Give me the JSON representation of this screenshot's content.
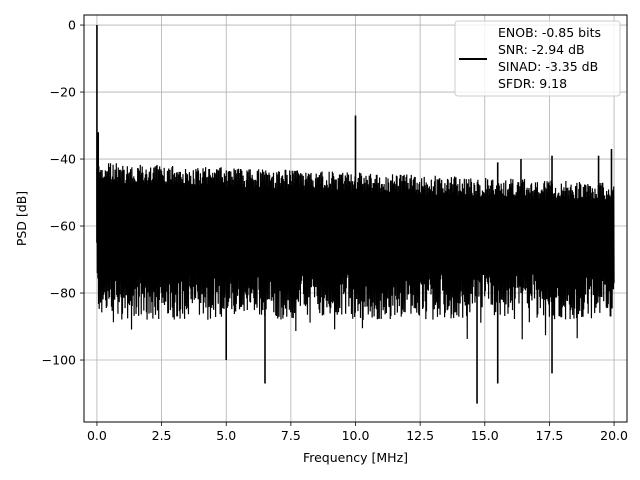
{
  "chart_data": {
    "type": "line",
    "xlabel": "Frequency [MHz]",
    "ylabel": "PSD [dB]",
    "xlim": [
      -0.5,
      20.5
    ],
    "ylim": [
      -118.5,
      3
    ],
    "grid": true,
    "xticks": [
      0.0,
      2.5,
      5.0,
      7.5,
      10.0,
      12.5,
      15.0,
      17.5,
      20.0
    ],
    "xtick_labels": [
      "0.0",
      "2.5",
      "5.0",
      "7.5",
      "10.0",
      "12.5",
      "15.0",
      "17.5",
      "20.0"
    ],
    "yticks": [
      0,
      -20,
      -40,
      -60,
      -80,
      -100
    ],
    "ytick_labels": [
      "0",
      "−20",
      "−40",
      "−60",
      "−80",
      "−100"
    ],
    "legend": {
      "placement": "top-right",
      "entries": [
        "ENOB: -0.85 bits",
        "SNR: -2.94 dB",
        "SINAD: -3.35 dB",
        "SFDR: 9.18"
      ]
    },
    "series": [
      {
        "color": "#000000",
        "noise_floor": {
          "x_range": [
            0.0,
            20.0
          ],
          "top_db_start": -41,
          "top_db_end": -47,
          "bottom_db": -88,
          "median_db": -65
        },
        "spikes": [
          {
            "x": 0.0,
            "y": 0.0
          },
          {
            "x": 0.05,
            "y": -32
          },
          {
            "x": 10.0,
            "y": -27
          },
          {
            "x": 14.7,
            "y": -113
          },
          {
            "x": 6.5,
            "y": -107
          },
          {
            "x": 15.5,
            "y": -107
          },
          {
            "x": 17.6,
            "y": -104
          },
          {
            "x": 5.0,
            "y": -100
          },
          {
            "x": 19.9,
            "y": -37
          },
          {
            "x": 19.4,
            "y": -39
          },
          {
            "x": 17.6,
            "y": -39
          },
          {
            "x": 16.4,
            "y": -40
          },
          {
            "x": 15.5,
            "y": -41
          }
        ]
      }
    ]
  }
}
